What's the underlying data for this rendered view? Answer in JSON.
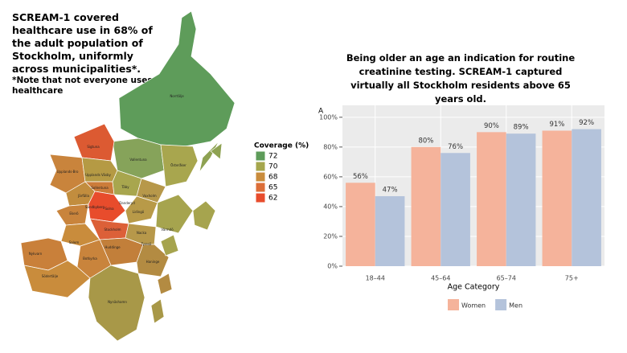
{
  "left_text": {
    "heading": "SCREAM-1 covered healthcare use in 68% of the adult population of Stockholm, uniformly across municipalities*.",
    "note": "*Note that not everyone uses healthcare"
  },
  "map": {
    "legend_title": "Coverage (%)",
    "legend": [
      {
        "label": "72",
        "color": "#5e9c5a"
      },
      {
        "label": "70",
        "color": "#a5a64c"
      },
      {
        "label": "68",
        "color": "#c98c3c"
      },
      {
        "label": "65",
        "color": "#dc6e38"
      },
      {
        "label": "62",
        "color": "#e84c2c"
      }
    ],
    "labels": [
      "Norrtälje",
      "Sigtuna",
      "Vallentuna",
      "Upplands-Bro",
      "Upplands Väsby",
      "Österåker",
      "Täby",
      "Järfälla",
      "Sollentuna",
      "Danderyd",
      "Vaxholm",
      "Ekerö",
      "Sundbyberg",
      "Solna",
      "Lidingö",
      "Stockholm",
      "Nacka",
      "Värmdö",
      "Salem",
      "Huddinge",
      "Tyresö",
      "Nykvarn",
      "Botkyrka",
      "Haninge",
      "Södertälje",
      "Nynäshamn"
    ]
  },
  "chart_data": {
    "type": "bar",
    "title": "Being older an age an indication for routine creatinine testing. SCREAM-1 captured virtually all Stockholm residents above 65 years old.",
    "panel_label": "A",
    "x_label": "Age Category",
    "categories": [
      "18–44",
      "45–64",
      "65–74",
      "75+"
    ],
    "series": [
      {
        "name": "Women",
        "color": "#f5b39b",
        "values": [
          56,
          80,
          90,
          91
        ],
        "value_labels": [
          "56%",
          "80%",
          "90%",
          "91%"
        ]
      },
      {
        "name": "Men",
        "color": "#b4c3db",
        "values": [
          47,
          76,
          89,
          92
        ],
        "value_labels": [
          "47%",
          "76%",
          "89%",
          "92%"
        ]
      }
    ],
    "ylim": [
      0,
      108
    ],
    "yticks": [
      {
        "value": 0,
        "label": "0%"
      },
      {
        "value": 20,
        "label": "20%"
      },
      {
        "value": 40,
        "label": "40%"
      },
      {
        "value": 60,
        "label": "60%"
      },
      {
        "value": 80,
        "label": "80%"
      },
      {
        "value": 100,
        "label": "100%"
      }
    ],
    "grid": true
  }
}
